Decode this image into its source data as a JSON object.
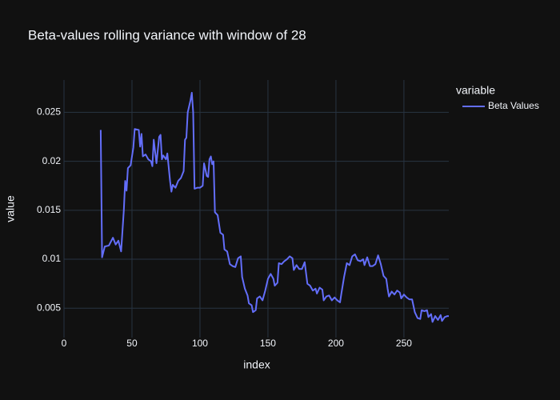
{
  "chart_data": {
    "type": "line",
    "title": "Beta-values rolling variance with window of 28",
    "x_label": "index",
    "y_label": "value",
    "legend_title": "variable",
    "grid": true,
    "xlim": [
      0,
      283
    ],
    "ylim": [
      0.002,
      0.0283
    ],
    "xticks": [
      0,
      50,
      100,
      150,
      200,
      250
    ],
    "yticks": [
      0.005,
      0.01,
      0.015,
      0.02,
      0.025
    ],
    "x": [
      27,
      28,
      30,
      33,
      36,
      38,
      40,
      42,
      44,
      45,
      46,
      47,
      49,
      51,
      52,
      55,
      56,
      57,
      58,
      60,
      62,
      64,
      65,
      66,
      67,
      68,
      70,
      71,
      72,
      73,
      75,
      76,
      78,
      79,
      80,
      82,
      84,
      86,
      88,
      89,
      90,
      91,
      93,
      94,
      95,
      96,
      98,
      100,
      102,
      103,
      105,
      106,
      107,
      108,
      109,
      110,
      111,
      113,
      115,
      117,
      118,
      120,
      122,
      124,
      126,
      128,
      130,
      131,
      133,
      135,
      136,
      138,
      139,
      141,
      142,
      144,
      146,
      148,
      150,
      152,
      154,
      155,
      157,
      158,
      160,
      162,
      164,
      166,
      168,
      169,
      171,
      173,
      175,
      177,
      179,
      181,
      183,
      185,
      186,
      188,
      190,
      191,
      193,
      195,
      197,
      199,
      201,
      203,
      204,
      206,
      208,
      210,
      212,
      214,
      216,
      218,
      220,
      221,
      223,
      225,
      227,
      229,
      231,
      233,
      235,
      237,
      238,
      239,
      241,
      243,
      245,
      247,
      248,
      250,
      252,
      254,
      256,
      258,
      260,
      262,
      263,
      265,
      267,
      268,
      270,
      271,
      273,
      275,
      277,
      278,
      280,
      282,
      283
    ],
    "series": [
      {
        "name": "Beta Values",
        "color": "#636efa",
        "values": [
          0.0232,
          0.0102,
          0.0113,
          0.0114,
          0.0122,
          0.0115,
          0.0119,
          0.0108,
          0.015,
          0.018,
          0.017,
          0.0193,
          0.0196,
          0.0214,
          0.0233,
          0.0232,
          0.0215,
          0.0228,
          0.0205,
          0.0207,
          0.0202,
          0.02,
          0.0195,
          0.0222,
          0.021,
          0.0198,
          0.0225,
          0.0227,
          0.0202,
          0.0206,
          0.0202,
          0.0208,
          0.018,
          0.0169,
          0.0176,
          0.0173,
          0.018,
          0.0183,
          0.019,
          0.0222,
          0.0224,
          0.025,
          0.0262,
          0.027,
          0.025,
          0.0172,
          0.0173,
          0.0173,
          0.0175,
          0.0198,
          0.0185,
          0.0184,
          0.0202,
          0.0205,
          0.0197,
          0.02,
          0.0148,
          0.0145,
          0.0127,
          0.0125,
          0.011,
          0.0108,
          0.0095,
          0.0093,
          0.0092,
          0.0101,
          0.0103,
          0.0082,
          0.007,
          0.0063,
          0.0055,
          0.0053,
          0.0046,
          0.0048,
          0.006,
          0.0062,
          0.0058,
          0.0068,
          0.008,
          0.0085,
          0.008,
          0.0073,
          0.0076,
          0.0096,
          0.0095,
          0.0098,
          0.01,
          0.0103,
          0.0101,
          0.0089,
          0.0094,
          0.009,
          0.009,
          0.0097,
          0.0075,
          0.0073,
          0.0068,
          0.007,
          0.0065,
          0.0071,
          0.0069,
          0.0058,
          0.0062,
          0.0063,
          0.0058,
          0.0061,
          0.0058,
          0.0056,
          0.0065,
          0.0082,
          0.0096,
          0.0094,
          0.0103,
          0.0105,
          0.0099,
          0.0098,
          0.01,
          0.0094,
          0.0102,
          0.0093,
          0.0093,
          0.0095,
          0.0104,
          0.0095,
          0.0083,
          0.008,
          0.007,
          0.0062,
          0.0067,
          0.0064,
          0.0068,
          0.0066,
          0.006,
          0.0064,
          0.0061,
          0.0059,
          0.0059,
          0.0046,
          0.004,
          0.0039,
          0.0048,
          0.0047,
          0.0048,
          0.0041,
          0.0044,
          0.0036,
          0.0042,
          0.0038,
          0.0043,
          0.0037,
          0.0041,
          0.0042,
          0.0042
        ]
      }
    ]
  }
}
